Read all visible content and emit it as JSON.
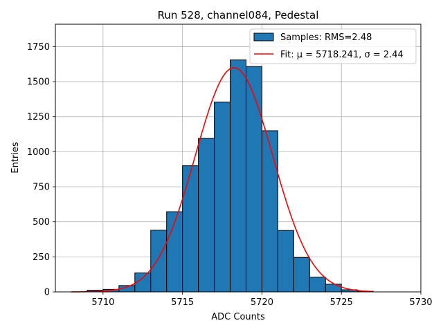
{
  "chart_data": {
    "type": "histogram",
    "title": "Run 528, channel084, Pedestal",
    "xlabel": "ADC Counts",
    "ylabel": "Entries",
    "xlim": [
      5707,
      5730
    ],
    "ylim": [
      0,
      1910
    ],
    "xticks": [
      5710,
      5715,
      5720,
      5725,
      5730
    ],
    "yticks": [
      0,
      250,
      500,
      750,
      1000,
      1250,
      1500,
      1750
    ],
    "grid": true,
    "legend_position": "top-right",
    "bin_width": 1,
    "bins": [
      {
        "x": 5709,
        "value": 12
      },
      {
        "x": 5710,
        "value": 18
      },
      {
        "x": 5711,
        "value": 45
      },
      {
        "x": 5712,
        "value": 135
      },
      {
        "x": 5713,
        "value": 440
      },
      {
        "x": 5714,
        "value": 572
      },
      {
        "x": 5715,
        "value": 900
      },
      {
        "x": 5716,
        "value": 1095
      },
      {
        "x": 5717,
        "value": 1355
      },
      {
        "x": 5718,
        "value": 1655
      },
      {
        "x": 5719,
        "value": 1608
      },
      {
        "x": 5720,
        "value": 1150
      },
      {
        "x": 5721,
        "value": 438
      },
      {
        "x": 5722,
        "value": 245
      },
      {
        "x": 5723,
        "value": 105
      },
      {
        "x": 5724,
        "value": 55
      },
      {
        "x": 5725,
        "value": 15
      },
      {
        "x": 5726,
        "value": 5
      }
    ],
    "fit": {
      "type": "gaussian",
      "mu": 5718.241,
      "sigma": 2.44,
      "peak": 1600,
      "x_range": [
        5708,
        5727
      ]
    },
    "series": [
      {
        "name": "Samples: RMS=2.48",
        "color": "#1f77b4"
      },
      {
        "name": "Fit: μ = 5718.241, σ = 2.44",
        "color": "#ff0000"
      }
    ]
  }
}
